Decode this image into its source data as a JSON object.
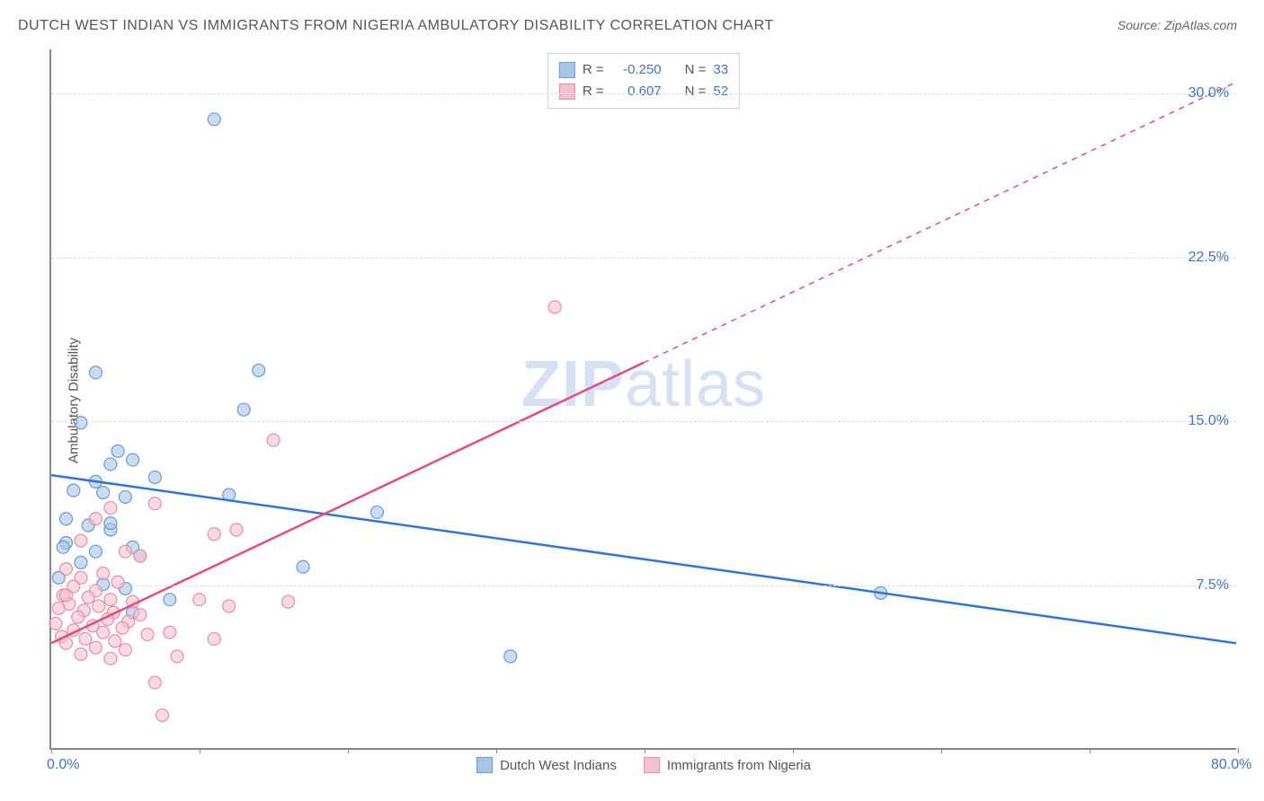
{
  "title": "DUTCH WEST INDIAN VS IMMIGRANTS FROM NIGERIA AMBULATORY DISABILITY CORRELATION CHART",
  "source": "Source: ZipAtlas.com",
  "ylabel": "Ambulatory Disability",
  "watermark_bold": "ZIP",
  "watermark_light": "atlas",
  "chart": {
    "type": "scatter",
    "xlim": [
      0,
      80
    ],
    "ylim": [
      0,
      32
    ],
    "xtick_values": [
      0,
      10,
      20,
      30,
      40,
      50,
      60,
      70,
      80
    ],
    "xtick_labels": {
      "0": "0.0%",
      "80": "80.0%"
    },
    "ytick_values": [
      7.5,
      15.0,
      22.5,
      30.0
    ],
    "ytick_labels": [
      "7.5%",
      "15.0%",
      "22.5%",
      "30.0%"
    ],
    "background_color": "#ffffff",
    "grid_color": "#dddddd",
    "axis_color": "#888888",
    "marker_radius": 7,
    "marker_stroke_width": 1.2,
    "trend_line_width": 2.5,
    "series": [
      {
        "name": "Dutch West Indians",
        "color_fill": "#a8c5e8",
        "color_stroke": "#6b9bd1",
        "trend_color": "#2e75d6",
        "R": "-0.250",
        "N": "33",
        "trend": {
          "x1": 0,
          "y1": 12.5,
          "x2": 80,
          "y2": 4.8
        },
        "points": [
          [
            11,
            28.8
          ],
          [
            3,
            17.2
          ],
          [
            14,
            17.3
          ],
          [
            2,
            14.9
          ],
          [
            4.5,
            13.6
          ],
          [
            13,
            15.5
          ],
          [
            4,
            13.0
          ],
          [
            5.5,
            13.2
          ],
          [
            3,
            12.2
          ],
          [
            7,
            12.4
          ],
          [
            1.5,
            11.8
          ],
          [
            3.5,
            11.7
          ],
          [
            5,
            11.5
          ],
          [
            12,
            11.6
          ],
          [
            22,
            10.8
          ],
          [
            4,
            10.0
          ],
          [
            1,
            9.4
          ],
          [
            0.8,
            9.2
          ],
          [
            3,
            9.0
          ],
          [
            5.5,
            9.2
          ],
          [
            2,
            8.5
          ],
          [
            6,
            8.8
          ],
          [
            17,
            8.3
          ],
          [
            0.5,
            7.8
          ],
          [
            3.5,
            7.5
          ],
          [
            5,
            7.3
          ],
          [
            8,
            6.8
          ],
          [
            5.5,
            6.2
          ],
          [
            31,
            4.2
          ],
          [
            56,
            7.1
          ],
          [
            1,
            10.5
          ],
          [
            2.5,
            10.2
          ],
          [
            4,
            10.3
          ]
        ]
      },
      {
        "name": "Immigrants from Nigeria",
        "color_fill": "#f4c2cf",
        "color_stroke": "#e68fa8",
        "trend_color": "#e54b7b",
        "R": "0.607",
        "N": "52",
        "trend": {
          "x1": 0,
          "y1": 4.8,
          "x2": 80,
          "y2": 30.5
        },
        "trend_solid_until_x": 40,
        "points": [
          [
            15,
            14.1
          ],
          [
            34,
            20.2
          ],
          [
            11,
            9.8
          ],
          [
            4,
            11.0
          ],
          [
            7,
            11.2
          ],
          [
            3,
            10.5
          ],
          [
            2,
            9.5
          ],
          [
            5,
            9.0
          ],
          [
            6,
            8.8
          ],
          [
            1,
            8.2
          ],
          [
            3.5,
            8.0
          ],
          [
            2,
            7.8
          ],
          [
            4.5,
            7.6
          ],
          [
            1.5,
            7.4
          ],
          [
            3,
            7.2
          ],
          [
            0.8,
            7.0
          ],
          [
            2.5,
            6.9
          ],
          [
            4,
            6.8
          ],
          [
            5.5,
            6.7
          ],
          [
            1.2,
            6.6
          ],
          [
            3.2,
            6.5
          ],
          [
            0.5,
            6.4
          ],
          [
            2.2,
            6.3
          ],
          [
            4.2,
            6.2
          ],
          [
            6,
            6.1
          ],
          [
            1.8,
            6.0
          ],
          [
            3.8,
            5.9
          ],
          [
            16,
            6.7
          ],
          [
            5.2,
            5.8
          ],
          [
            0.3,
            5.7
          ],
          [
            2.8,
            5.6
          ],
          [
            4.8,
            5.5
          ],
          [
            1.5,
            5.4
          ],
          [
            3.5,
            5.3
          ],
          [
            10,
            6.8
          ],
          [
            6.5,
            5.2
          ],
          [
            0.7,
            5.1
          ],
          [
            2.3,
            5.0
          ],
          [
            4.3,
            4.9
          ],
          [
            8,
            5.3
          ],
          [
            11,
            5.0
          ],
          [
            1,
            4.8
          ],
          [
            3,
            4.6
          ],
          [
            8.5,
            4.2
          ],
          [
            5,
            4.5
          ],
          [
            7,
            3.0
          ],
          [
            7.5,
            1.5
          ],
          [
            2,
            4.3
          ],
          [
            4,
            4.1
          ],
          [
            12,
            6.5
          ],
          [
            1,
            7.0
          ],
          [
            12.5,
            10.0
          ]
        ]
      }
    ]
  },
  "legend_top": {
    "r_label": "R =",
    "n_label": "N ="
  },
  "colors": {
    "tick_label": "#4472c4",
    "text": "#555555"
  }
}
